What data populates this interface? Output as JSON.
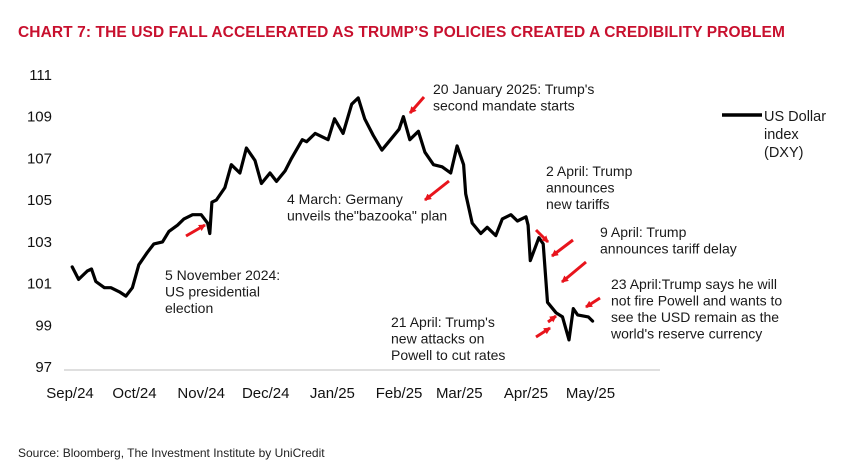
{
  "title": "CHART 7: THE USD FALL ACCELERATED AS TRUMP’S POLICIES CREATED A CREDIBILITY PROBLEM",
  "source": "Source: Bloomberg, The Investment Institute by UniCredit",
  "colors": {
    "title": "#c8102e",
    "line": "#000000",
    "arrow": "#e8141c",
    "axis": "#bfbfbf"
  },
  "chart_data": {
    "type": "line",
    "title": "CHART 7: THE USD FALL ACCELERATED AS TRUMP’S POLICIES CREATED A CREDIBILITY PROBLEM",
    "xlabel": "",
    "ylabel": "",
    "ylim": [
      97,
      111
    ],
    "xlim": [
      "2024-09-01",
      "2025-05-31"
    ],
    "y_ticks": [
      "111",
      "109",
      "107",
      "105",
      "103",
      "101",
      "99",
      "97"
    ],
    "x_ticks": [
      {
        "date": "2024-09-01",
        "label": "Sep/24"
      },
      {
        "date": "2024-10-01",
        "label": "Oct/24"
      },
      {
        "date": "2024-11-01",
        "label": "Nov/24"
      },
      {
        "date": "2024-12-01",
        "label": "Dec/24"
      },
      {
        "date": "2025-01-01",
        "label": "Jan/25"
      },
      {
        "date": "2025-02-01",
        "label": "Feb/25"
      },
      {
        "date": "2025-03-01",
        "label": "Mar/25"
      },
      {
        "date": "2025-04-01",
        "label": "Apr/25"
      },
      {
        "date": "2025-05-01",
        "label": "May/25"
      }
    ],
    "grid": false,
    "legend": {
      "position": "right",
      "lines": [
        "US Dollar",
        "index",
        "(DXY)"
      ]
    },
    "series": [
      {
        "name": "US Dollar index (DXY)",
        "points": [
          [
            "2024-09-02",
            101.8
          ],
          [
            "2024-09-05",
            101.2
          ],
          [
            "2024-09-09",
            101.6
          ],
          [
            "2024-09-11",
            101.7
          ],
          [
            "2024-09-13",
            101.1
          ],
          [
            "2024-09-17",
            100.8
          ],
          [
            "2024-09-20",
            100.8
          ],
          [
            "2024-09-24",
            100.6
          ],
          [
            "2024-09-27",
            100.4
          ],
          [
            "2024-09-30",
            100.8
          ],
          [
            "2024-10-03",
            101.9
          ],
          [
            "2024-10-07",
            102.5
          ],
          [
            "2024-10-10",
            102.9
          ],
          [
            "2024-10-14",
            103.0
          ],
          [
            "2024-10-17",
            103.5
          ],
          [
            "2024-10-21",
            103.8
          ],
          [
            "2024-10-24",
            104.1
          ],
          [
            "2024-10-28",
            104.3
          ],
          [
            "2024-11-01",
            104.3
          ],
          [
            "2024-11-04",
            103.9
          ],
          [
            "2024-11-05",
            103.4
          ],
          [
            "2024-11-06",
            104.9
          ],
          [
            "2024-11-08",
            105.0
          ],
          [
            "2024-11-12",
            105.6
          ],
          [
            "2024-11-15",
            106.7
          ],
          [
            "2024-11-19",
            106.3
          ],
          [
            "2024-11-22",
            107.5
          ],
          [
            "2024-11-26",
            106.9
          ],
          [
            "2024-11-29",
            105.8
          ],
          [
            "2024-12-03",
            106.3
          ],
          [
            "2024-12-06",
            105.9
          ],
          [
            "2024-12-10",
            106.4
          ],
          [
            "2024-12-13",
            107.0
          ],
          [
            "2024-12-18",
            107.9
          ],
          [
            "2024-12-20",
            107.8
          ],
          [
            "2024-12-24",
            108.2
          ],
          [
            "2024-12-30",
            107.9
          ],
          [
            "2025-01-02",
            108.9
          ],
          [
            "2025-01-06",
            108.2
          ],
          [
            "2025-01-10",
            109.6
          ],
          [
            "2025-01-13",
            109.9
          ],
          [
            "2025-01-16",
            108.9
          ],
          [
            "2025-01-20",
            108.1
          ],
          [
            "2025-01-24",
            107.4
          ],
          [
            "2025-01-28",
            107.9
          ],
          [
            "2025-02-01",
            108.4
          ],
          [
            "2025-02-03",
            109.0
          ],
          [
            "2025-02-06",
            107.9
          ],
          [
            "2025-02-10",
            108.3
          ],
          [
            "2025-02-13",
            107.3
          ],
          [
            "2025-02-17",
            106.7
          ],
          [
            "2025-02-21",
            106.6
          ],
          [
            "2025-02-25",
            106.3
          ],
          [
            "2025-02-28",
            107.6
          ],
          [
            "2025-03-03",
            106.7
          ],
          [
            "2025-03-04",
            105.3
          ],
          [
            "2025-03-07",
            103.9
          ],
          [
            "2025-03-11",
            103.4
          ],
          [
            "2025-03-14",
            103.7
          ],
          [
            "2025-03-18",
            103.3
          ],
          [
            "2025-03-21",
            104.1
          ],
          [
            "2025-03-25",
            104.3
          ],
          [
            "2025-03-28",
            104.0
          ],
          [
            "2025-04-01",
            104.2
          ],
          [
            "2025-04-02",
            103.8
          ],
          [
            "2025-04-03",
            102.1
          ],
          [
            "2025-04-07",
            103.2
          ],
          [
            "2025-04-09",
            102.9
          ],
          [
            "2025-04-11",
            100.1
          ],
          [
            "2025-04-15",
            99.6
          ],
          [
            "2025-04-18",
            99.4
          ],
          [
            "2025-04-21",
            98.3
          ],
          [
            "2025-04-23",
            99.8
          ],
          [
            "2025-04-25",
            99.5
          ],
          [
            "2025-04-30",
            99.4
          ],
          [
            "2025-05-02",
            99.2
          ]
        ]
      }
    ],
    "annotations": [
      {
        "lines": [
          "20 January 2025: Trump's",
          "second mandate starts"
        ]
      },
      {
        "lines": [
          "4 March: Germany",
          "unveils the\"bazooka\" plan"
        ]
      },
      {
        "lines": [
          "5 November 2024:",
          "US presidential",
          "election"
        ]
      },
      {
        "lines": [
          "2 April: Trump",
          "announces",
          "new tariffs"
        ]
      },
      {
        "lines": [
          "9 April: Trump",
          "announces tariff delay"
        ]
      },
      {
        "lines": [
          "23 April:Trump  says he will",
          "not fire Powell and wants to",
          "see the USD remain as the",
          "world's reserve currency"
        ]
      },
      {
        "lines": [
          "21 April: Trump's",
          "new attacks on",
          "Powell to cut rates"
        ]
      }
    ]
  }
}
